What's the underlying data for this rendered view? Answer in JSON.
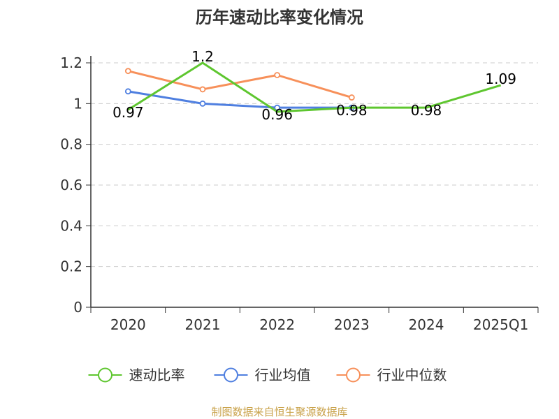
{
  "chart_data": {
    "type": "line",
    "title": "历年速动比率变化情况",
    "categories": [
      "2020",
      "2021",
      "2022",
      "2023",
      "2024",
      "2025Q1"
    ],
    "ylim": [
      0,
      1.2
    ],
    "yticks": [
      "0",
      "0.2",
      "0.4",
      "0.6",
      "0.8",
      "1",
      "1.2"
    ],
    "grid": true,
    "legend_position": "bottom",
    "series": [
      {
        "name": "速动比率",
        "color": "#5ec62f",
        "values": [
          0.97,
          1.2,
          0.96,
          0.98,
          0.98,
          1.09
        ],
        "labels": [
          "0.97",
          "1.2",
          "0.96",
          "0.98",
          "0.98",
          "1.09"
        ],
        "show_markers": false
      },
      {
        "name": "行业均值",
        "color": "#4f7fe0",
        "values": [
          1.06,
          1.0,
          0.98,
          0.98,
          null,
          null
        ],
        "show_markers": true
      },
      {
        "name": "行业中位数",
        "color": "#f7905a",
        "values": [
          1.16,
          1.07,
          1.14,
          1.03,
          null,
          null
        ],
        "show_markers": true
      }
    ],
    "source": "制图数据来自恒生聚源数据库"
  }
}
